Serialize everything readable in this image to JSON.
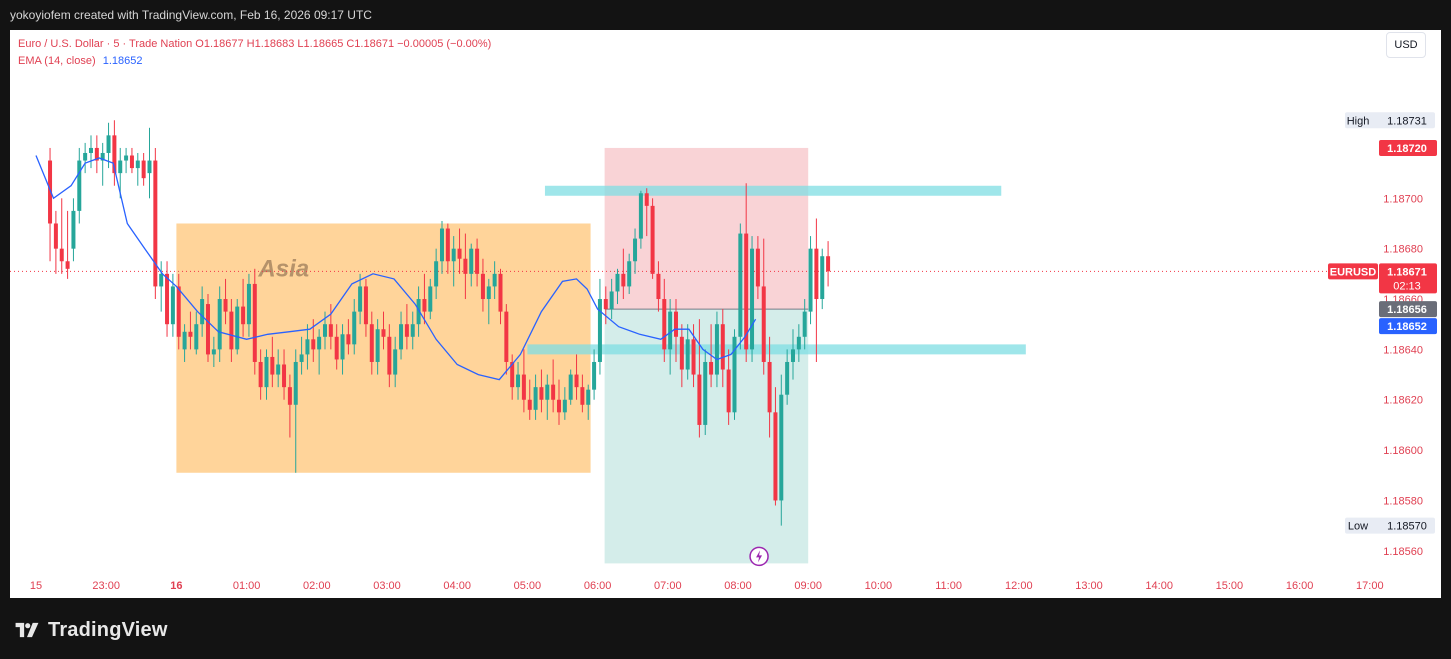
{
  "header": {
    "created_by": "yokoyiofem created with TradingView.com, Feb 16, 2026 09:17 UTC"
  },
  "legend": {
    "symbol_line": "Euro / U.S. Dollar · 5 · Trade Nation  O1.18677  H1.18683  L1.18665  C1.18671  −0.00005 (−0.00%)",
    "ema_label": "EMA (14, close)",
    "ema_value": "1.18652"
  },
  "currency_button": "USD",
  "footer": {
    "brand": "TradingView"
  },
  "colors": {
    "up": "#26a69a",
    "down": "#f23645",
    "ema": "#2962ff",
    "asia_box": "#ffcc88",
    "zone": "#7fdde3",
    "stop": "#f7c8cc",
    "target": "#cdeae6"
  },
  "chart_data": {
    "type": "candlestick",
    "symbol": "EURUSD",
    "interval": "5",
    "ylim": [
      1.1855,
      1.18745
    ],
    "y_ticks": [
      "1.18560",
      "1.18580",
      "1.18600",
      "1.18620",
      "1.18640",
      "1.18660",
      "1.18680",
      "1.18700"
    ],
    "x_ticks": [
      "15",
      "23:00",
      "16",
      "01:00",
      "02:00",
      "03:00",
      "04:00",
      "05:00",
      "06:00",
      "07:00",
      "08:00",
      "09:00",
      "10:00",
      "11:00",
      "12:00",
      "13:00",
      "14:00",
      "15:00",
      "16:00",
      "17:00"
    ],
    "x_tick_bold": [
      "16"
    ],
    "price_labels": {
      "high": {
        "label": "High",
        "value": "1.18731"
      },
      "low": {
        "label": "Low",
        "value": "1.18570"
      },
      "stop": "1.18720",
      "current": {
        "symbol": "EURUSD",
        "value": "1.18671",
        "countdown": "02:13"
      },
      "entry": "1.18656",
      "ema": "1.18652"
    },
    "annotations": {
      "asia_box": {
        "label": "Asia",
        "t_start": 1,
        "t_end": 6.9,
        "high": 1.1869,
        "low": 1.18591
      },
      "upper_zone": {
        "t_start": 6.25,
        "t_end": 12.75,
        "price": 1.18703
      },
      "lower_zone": {
        "t_start": 6.0,
        "t_end": 13.1,
        "price": 1.1864
      },
      "position": {
        "t_start": 7.1,
        "t_end": 10.0,
        "entry": 1.18656,
        "stop": 1.1872,
        "target": 1.18555
      }
    },
    "ohlc": [
      [
        1.18715,
        1.1872,
        1.18675,
        1.1869
      ],
      [
        1.1869,
        1.18695,
        1.1867,
        1.1868
      ],
      [
        1.1868,
        1.187,
        1.1867,
        1.18675
      ],
      [
        1.18675,
        1.18695,
        1.18668,
        1.18672
      ],
      [
        1.1868,
        1.187,
        1.18675,
        1.18695
      ],
      [
        1.18695,
        1.1872,
        1.1869,
        1.18715
      ],
      [
        1.18715,
        1.18722,
        1.1871,
        1.18718
      ],
      [
        1.18718,
        1.18725,
        1.18712,
        1.1872
      ],
      [
        1.1872,
        1.18725,
        1.1871,
        1.18715
      ],
      [
        1.18715,
        1.18722,
        1.18705,
        1.18718
      ],
      [
        1.18718,
        1.1873,
        1.18712,
        1.18725
      ],
      [
        1.18725,
        1.18731,
        1.18705,
        1.1871
      ],
      [
        1.1871,
        1.1872,
        1.187,
        1.18715
      ],
      [
        1.18715,
        1.1872,
        1.1871,
        1.18717
      ],
      [
        1.18717,
        1.1872,
        1.1871,
        1.18712
      ],
      [
        1.18712,
        1.18718,
        1.18705,
        1.18715
      ],
      [
        1.18715,
        1.18718,
        1.18705,
        1.18708
      ],
      [
        1.1871,
        1.18728,
        1.187,
        1.18715
      ],
      [
        1.18715,
        1.1872,
        1.1866,
        1.18665
      ],
      [
        1.18665,
        1.18675,
        1.18655,
        1.1867
      ],
      [
        1.1867,
        1.18675,
        1.18645,
        1.1865
      ],
      [
        1.1865,
        1.1867,
        1.18645,
        1.18665
      ],
      [
        1.18665,
        1.1867,
        1.1864,
        1.18645
      ],
      [
        1.1864,
        1.1865,
        1.18635,
        1.18647
      ],
      [
        1.18647,
        1.18655,
        1.1864,
        1.18645
      ],
      [
        1.1864,
        1.18655,
        1.18638,
        1.1865
      ],
      [
        1.1865,
        1.18665,
        1.18645,
        1.1866
      ],
      [
        1.18658,
        1.18662,
        1.18635,
        1.18638
      ],
      [
        1.18638,
        1.18645,
        1.18633,
        1.1864
      ],
      [
        1.1864,
        1.18665,
        1.18635,
        1.1866
      ],
      [
        1.1866,
        1.18668,
        1.1865,
        1.18655
      ],
      [
        1.18655,
        1.1866,
        1.18635,
        1.1864
      ],
      [
        1.1864,
        1.1866,
        1.18638,
        1.18657
      ],
      [
        1.18657,
        1.18668,
        1.18645,
        1.1865
      ],
      [
        1.1865,
        1.1867,
        1.18645,
        1.18666
      ],
      [
        1.18666,
        1.18672,
        1.1863,
        1.18635
      ],
      [
        1.18635,
        1.1864,
        1.1862,
        1.18625
      ],
      [
        1.18625,
        1.1864,
        1.1862,
        1.18637
      ],
      [
        1.18637,
        1.18645,
        1.18625,
        1.1863
      ],
      [
        1.1863,
        1.1864,
        1.18625,
        1.18634
      ],
      [
        1.18634,
        1.1864,
        1.1862,
        1.18625
      ],
      [
        1.18625,
        1.1863,
        1.18605,
        1.18618
      ],
      [
        1.18618,
        1.1864,
        1.18591,
        1.18635
      ],
      [
        1.18635,
        1.18645,
        1.1863,
        1.18638
      ],
      [
        1.18638,
        1.1865,
        1.18632,
        1.18644
      ],
      [
        1.18644,
        1.18652,
        1.18635,
        1.1864
      ],
      [
        1.1864,
        1.18648,
        1.1863,
        1.18645
      ],
      [
        1.18645,
        1.18655,
        1.1864,
        1.1865
      ],
      [
        1.1865,
        1.18658,
        1.1864,
        1.18645
      ],
      [
        1.18645,
        1.1865,
        1.18632,
        1.18636
      ],
      [
        1.18636,
        1.1865,
        1.1863,
        1.18646
      ],
      [
        1.18646,
        1.18652,
        1.18638,
        1.18642
      ],
      [
        1.18642,
        1.1866,
        1.18638,
        1.18655
      ],
      [
        1.18655,
        1.1867,
        1.1865,
        1.18665
      ],
      [
        1.18665,
        1.18668,
        1.18645,
        1.1865
      ],
      [
        1.1865,
        1.18655,
        1.1863,
        1.18635
      ],
      [
        1.18635,
        1.18652,
        1.1863,
        1.18648
      ],
      [
        1.18648,
        1.18655,
        1.1864,
        1.18645
      ],
      [
        1.18645,
        1.1865,
        1.18625,
        1.1863
      ],
      [
        1.1863,
        1.18645,
        1.18625,
        1.1864
      ],
      [
        1.1864,
        1.18655,
        1.18636,
        1.1865
      ],
      [
        1.1865,
        1.18658,
        1.1864,
        1.18645
      ],
      [
        1.18645,
        1.18655,
        1.1864,
        1.1865
      ],
      [
        1.1865,
        1.18665,
        1.18645,
        1.1866
      ],
      [
        1.1866,
        1.1867,
        1.1865,
        1.18655
      ],
      [
        1.18655,
        1.18668,
        1.18652,
        1.18665
      ],
      [
        1.18665,
        1.1868,
        1.1866,
        1.18675
      ],
      [
        1.18675,
        1.18691,
        1.1867,
        1.18688
      ],
      [
        1.18688,
        1.1869,
        1.1867,
        1.18675
      ],
      [
        1.18675,
        1.18685,
        1.18665,
        1.1868
      ],
      [
        1.1868,
        1.18688,
        1.1867,
        1.18676
      ],
      [
        1.18676,
        1.18686,
        1.1866,
        1.1867
      ],
      [
        1.1867,
        1.18682,
        1.18665,
        1.1868
      ],
      [
        1.1868,
        1.18684,
        1.18665,
        1.1867
      ],
      [
        1.1867,
        1.18676,
        1.18655,
        1.1866
      ],
      [
        1.1866,
        1.18668,
        1.1865,
        1.18665
      ],
      [
        1.18665,
        1.18675,
        1.1866,
        1.1867
      ],
      [
        1.1867,
        1.18672,
        1.1865,
        1.18655
      ],
      [
        1.18655,
        1.18658,
        1.1863,
        1.18635
      ],
      [
        1.18635,
        1.18638,
        1.1862,
        1.18625
      ],
      [
        1.18625,
        1.18635,
        1.1862,
        1.1863
      ],
      [
        1.1863,
        1.1864,
        1.18615,
        1.1862
      ],
      [
        1.1862,
        1.18628,
        1.18612,
        1.18616
      ],
      [
        1.18616,
        1.1863,
        1.18612,
        1.18625
      ],
      [
        1.18625,
        1.18632,
        1.18615,
        1.1862
      ],
      [
        1.1862,
        1.1863,
        1.18612,
        1.18626
      ],
      [
        1.18626,
        1.18636,
        1.18615,
        1.1862
      ],
      [
        1.1862,
        1.18628,
        1.1861,
        1.18615
      ],
      [
        1.18615,
        1.18625,
        1.18612,
        1.1862
      ],
      [
        1.1862,
        1.18632,
        1.18618,
        1.1863
      ],
      [
        1.1863,
        1.18638,
        1.1862,
        1.18625
      ],
      [
        1.18625,
        1.1863,
        1.18615,
        1.18618
      ],
      [
        1.18618,
        1.18626,
        1.18612,
        1.18624
      ],
      [
        1.18624,
        1.1864,
        1.1862,
        1.18635
      ],
      [
        1.18635,
        1.18668,
        1.1863,
        1.1866
      ],
      [
        1.1866,
        1.18665,
        1.1865,
        1.18656
      ],
      [
        1.18656,
        1.18668,
        1.18652,
        1.18663
      ],
      [
        1.18663,
        1.18672,
        1.18658,
        1.1867
      ],
      [
        1.1867,
        1.1868,
        1.1866,
        1.18665
      ],
      [
        1.18665,
        1.18678,
        1.18662,
        1.18675
      ],
      [
        1.18675,
        1.18688,
        1.1867,
        1.18684
      ],
      [
        1.18684,
        1.18703,
        1.1868,
        1.18702
      ],
      [
        1.18702,
        1.18704,
        1.18685,
        1.18697
      ],
      [
        1.18697,
        1.187,
        1.18668,
        1.1867
      ],
      [
        1.1867,
        1.18675,
        1.18655,
        1.1866
      ],
      [
        1.1866,
        1.18668,
        1.18635,
        1.1864
      ],
      [
        1.1864,
        1.1866,
        1.1863,
        1.18655
      ],
      [
        1.18655,
        1.1866,
        1.18635,
        1.18645
      ],
      [
        1.18645,
        1.1865,
        1.18625,
        1.18632
      ],
      [
        1.18632,
        1.1865,
        1.18628,
        1.18644
      ],
      [
        1.18644,
        1.1865,
        1.18625,
        1.1863
      ],
      [
        1.1863,
        1.18652,
        1.18605,
        1.1861
      ],
      [
        1.1861,
        1.1864,
        1.18606,
        1.18635
      ],
      [
        1.18635,
        1.1865,
        1.18625,
        1.1863
      ],
      [
        1.1863,
        1.18655,
        1.18625,
        1.1865
      ],
      [
        1.1865,
        1.18656,
        1.18625,
        1.18632
      ],
      [
        1.18632,
        1.1864,
        1.1861,
        1.18615
      ],
      [
        1.18615,
        1.18648,
        1.18612,
        1.18645
      ],
      [
        1.18645,
        1.1869,
        1.1864,
        1.18686
      ],
      [
        1.18686,
        1.18706,
        1.18635,
        1.1864
      ],
      [
        1.1864,
        1.18685,
        1.18635,
        1.1868
      ],
      [
        1.1868,
        1.18685,
        1.1866,
        1.18665
      ],
      [
        1.18665,
        1.18684,
        1.1863,
        1.18635
      ],
      [
        1.18635,
        1.18645,
        1.18605,
        1.18615
      ],
      [
        1.18615,
        1.18625,
        1.18578,
        1.1858
      ],
      [
        1.1858,
        1.1863,
        1.1857,
        1.18622
      ],
      [
        1.18622,
        1.1864,
        1.18618,
        1.18635
      ],
      [
        1.18635,
        1.18648,
        1.18628,
        1.1864
      ],
      [
        1.1864,
        1.1865,
        1.18635,
        1.18645
      ],
      [
        1.18645,
        1.1866,
        1.1864,
        1.18655
      ],
      [
        1.18655,
        1.18685,
        1.1865,
        1.1868
      ],
      [
        1.1868,
        1.18692,
        1.18635,
        1.1866
      ],
      [
        1.1866,
        1.1868,
        1.18656,
        1.18677
      ],
      [
        1.18677,
        1.18683,
        1.18665,
        1.18671
      ]
    ],
    "ema14": [
      [
        -1.0,
        1.18717
      ],
      [
        -0.75,
        1.187
      ],
      [
        -0.5,
        1.18705
      ],
      [
        -0.3,
        1.18714
      ],
      [
        -0.1,
        1.18716
      ],
      [
        0.1,
        1.18714
      ],
      [
        0.3,
        1.1869
      ],
      [
        0.55,
        1.1868
      ],
      [
        0.8,
        1.1867
      ],
      [
        1.0,
        1.18665
      ],
      [
        1.3,
        1.18655
      ],
      [
        1.6,
        1.18647
      ],
      [
        2.0,
        1.18644
      ],
      [
        2.3,
        1.18646
      ],
      [
        2.6,
        1.18647
      ],
      [
        2.9,
        1.18648
      ],
      [
        3.2,
        1.18654
      ],
      [
        3.5,
        1.18666
      ],
      [
        3.8,
        1.1867
      ],
      [
        4.1,
        1.18668
      ],
      [
        4.4,
        1.18658
      ],
      [
        4.7,
        1.18644
      ],
      [
        5.0,
        1.18634
      ],
      [
        5.3,
        1.1863
      ],
      [
        5.6,
        1.18628
      ],
      [
        5.9,
        1.18638
      ],
      [
        6.2,
        1.18655
      ],
      [
        6.5,
        1.18667
      ],
      [
        6.7,
        1.18668
      ],
      [
        6.85,
        1.18664
      ],
      [
        7.0,
        1.18656
      ],
      [
        7.3,
        1.18649
      ],
      [
        7.6,
        1.18646
      ],
      [
        7.9,
        1.18644
      ],
      [
        8.1,
        1.18648
      ],
      [
        8.3,
        1.18648
      ],
      [
        8.5,
        1.1864
      ],
      [
        8.7,
        1.18636
      ],
      [
        8.9,
        1.18638
      ],
      [
        9.1,
        1.18645
      ],
      [
        9.25,
        1.18652
      ]
    ],
    "current_price": 1.18671
  }
}
